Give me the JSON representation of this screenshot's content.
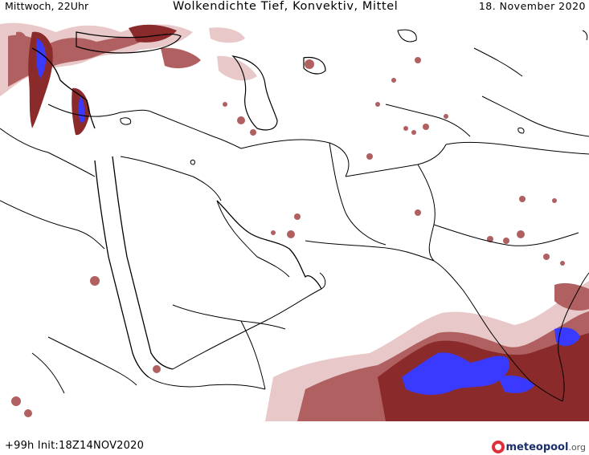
{
  "header": {
    "valid_time": "Mittwoch, 22Uhr",
    "product_title": "Wolkendichte  Tief, Konvektiv, Mittel",
    "date": "18. November 2020"
  },
  "footer": {
    "run_info": "+99h  Init:18Z14NOV2020",
    "logo_name": "meteopool",
    "logo_tld": ".org"
  },
  "map": {
    "region": "Middle East and South Asia",
    "background_color": "#ffffff",
    "border_color": "#000000",
    "cloud_colors": {
      "light": "#e8c8c8",
      "medium": "#b06060",
      "dense": "#8a2a2a",
      "convective": "#3a3aff"
    }
  }
}
